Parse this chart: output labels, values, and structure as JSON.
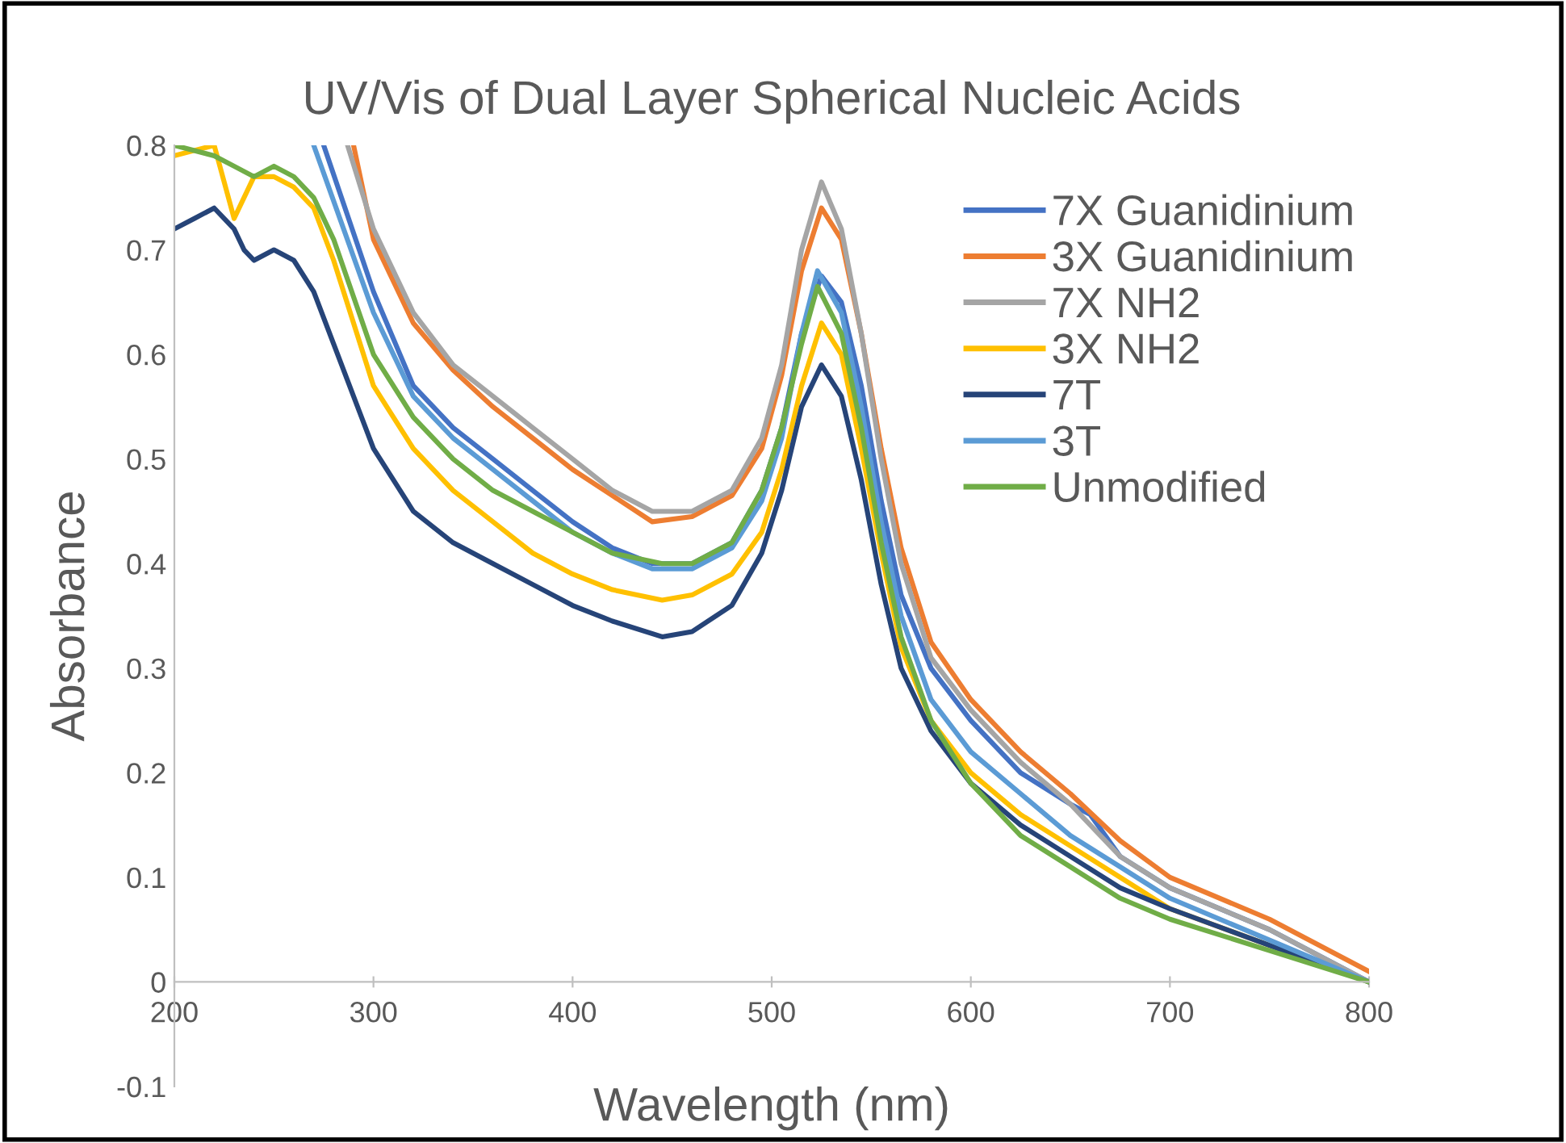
{
  "chart_data": {
    "type": "line",
    "title": "UV/Vis of Dual Layer Spherical Nucleic Acids",
    "xlabel": "Wavelength (nm)",
    "ylabel": "Absorbance",
    "xlim": [
      200,
      800
    ],
    "ylim": [
      -0.1,
      0.8
    ],
    "xticks": [
      200,
      300,
      400,
      500,
      600,
      700,
      800
    ],
    "yticks": [
      -0.1,
      0,
      0.1,
      0.2,
      0.3,
      0.4,
      0.5,
      0.6,
      0.7,
      0.8
    ],
    "grid": false,
    "legend": "right",
    "marker": "none",
    "line_style": "solid",
    "series": [
      {
        "name": "7X Guanidinium",
        "color": "#4472c4",
        "x": [
          275,
          300,
          320,
          340,
          360,
          380,
          400,
          420,
          440,
          460,
          480,
          495,
          505,
          515,
          525,
          535,
          545,
          555,
          565,
          580,
          600,
          625,
          650,
          660,
          675,
          700,
          750,
          800
        ],
        "values": [
          0.8,
          0.66,
          0.57,
          0.53,
          0.5,
          0.47,
          0.44,
          0.415,
          0.4,
          0.4,
          0.42,
          0.47,
          0.53,
          0.62,
          0.675,
          0.65,
          0.57,
          0.46,
          0.37,
          0.3,
          0.25,
          0.2,
          0.17,
          0.16,
          0.12,
          0.09,
          0.05,
          0.0
        ]
      },
      {
        "name": "3X Guanidinium",
        "color": "#ed7d31",
        "x": [
          290,
          300,
          320,
          340,
          360,
          380,
          400,
          420,
          440,
          460,
          480,
          495,
          505,
          515,
          525,
          535,
          545,
          555,
          565,
          580,
          600,
          625,
          650,
          675,
          700,
          750,
          800
        ],
        "values": [
          0.8,
          0.71,
          0.63,
          0.585,
          0.55,
          0.52,
          0.49,
          0.465,
          0.44,
          0.445,
          0.465,
          0.51,
          0.58,
          0.68,
          0.74,
          0.71,
          0.62,
          0.51,
          0.415,
          0.325,
          0.27,
          0.22,
          0.18,
          0.135,
          0.1,
          0.06,
          0.01
        ]
      },
      {
        "name": "7X NH2",
        "color": "#a5a5a5",
        "x": [
          287,
          300,
          320,
          340,
          360,
          380,
          400,
          420,
          440,
          460,
          480,
          495,
          505,
          515,
          525,
          535,
          545,
          555,
          565,
          580,
          600,
          625,
          650,
          675,
          700,
          750,
          800
        ],
        "values": [
          0.8,
          0.72,
          0.64,
          0.59,
          0.56,
          0.53,
          0.5,
          0.47,
          0.45,
          0.45,
          0.47,
          0.52,
          0.59,
          0.7,
          0.765,
          0.72,
          0.62,
          0.5,
          0.4,
          0.31,
          0.26,
          0.21,
          0.17,
          0.12,
          0.09,
          0.05,
          0.0
        ]
      },
      {
        "name": "3X NH2",
        "color": "#ffc000",
        "x": [
          200,
          220,
          230,
          240,
          250,
          260,
          270,
          280,
          300,
          320,
          340,
          360,
          380,
          400,
          420,
          445,
          460,
          480,
          495,
          505,
          515,
          525,
          535,
          545,
          555,
          565,
          580,
          600,
          625,
          650,
          675,
          700,
          750,
          800
        ],
        "values": [
          0.79,
          0.8,
          0.73,
          0.77,
          0.77,
          0.76,
          0.74,
          0.69,
          0.57,
          0.51,
          0.47,
          0.44,
          0.41,
          0.39,
          0.375,
          0.365,
          0.37,
          0.39,
          0.43,
          0.49,
          0.57,
          0.63,
          0.6,
          0.51,
          0.41,
          0.32,
          0.25,
          0.2,
          0.16,
          0.13,
          0.1,
          0.07,
          0.035,
          0.0
        ]
      },
      {
        "name": "7T",
        "color": "#264478",
        "x": [
          200,
          210,
          220,
          230,
          235,
          240,
          250,
          260,
          270,
          280,
          300,
          320,
          340,
          360,
          380,
          400,
          420,
          445,
          460,
          480,
          495,
          505,
          515,
          525,
          535,
          545,
          555,
          565,
          580,
          600,
          625,
          650,
          675,
          700,
          750,
          800
        ],
        "values": [
          0.72,
          0.73,
          0.74,
          0.72,
          0.7,
          0.69,
          0.7,
          0.69,
          0.66,
          0.61,
          0.51,
          0.45,
          0.42,
          0.4,
          0.38,
          0.36,
          0.345,
          0.33,
          0.335,
          0.36,
          0.41,
          0.47,
          0.55,
          0.59,
          0.56,
          0.48,
          0.38,
          0.3,
          0.24,
          0.19,
          0.15,
          0.12,
          0.09,
          0.07,
          0.035,
          0.0
        ]
      },
      {
        "name": "3T",
        "color": "#5b9bd5",
        "x": [
          270,
          300,
          320,
          340,
          360,
          380,
          400,
          420,
          440,
          460,
          480,
          495,
          505,
          515,
          523,
          535,
          545,
          555,
          565,
          580,
          600,
          625,
          650,
          675,
          700,
          750,
          800
        ],
        "values": [
          0.8,
          0.64,
          0.56,
          0.52,
          0.49,
          0.46,
          0.43,
          0.41,
          0.395,
          0.395,
          0.415,
          0.46,
          0.52,
          0.62,
          0.68,
          0.64,
          0.55,
          0.44,
          0.35,
          0.27,
          0.22,
          0.18,
          0.14,
          0.11,
          0.08,
          0.04,
          0.0
        ]
      },
      {
        "name": "Unmodified",
        "color": "#70ad47",
        "x": [
          200,
          220,
          230,
          240,
          250,
          260,
          270,
          280,
          300,
          320,
          340,
          360,
          380,
          400,
          420,
          445,
          460,
          480,
          495,
          505,
          515,
          523,
          535,
          545,
          555,
          565,
          580,
          600,
          625,
          650,
          675,
          700,
          750,
          800
        ],
        "values": [
          0.8,
          0.79,
          0.78,
          0.77,
          0.78,
          0.77,
          0.75,
          0.71,
          0.6,
          0.54,
          0.5,
          0.47,
          0.45,
          0.43,
          0.41,
          0.4,
          0.4,
          0.42,
          0.47,
          0.53,
          0.61,
          0.665,
          0.62,
          0.53,
          0.42,
          0.33,
          0.25,
          0.19,
          0.14,
          0.11,
          0.08,
          0.06,
          0.03,
          0.0
        ]
      }
    ]
  }
}
